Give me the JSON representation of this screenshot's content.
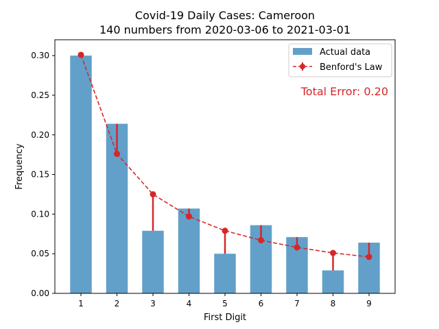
{
  "chart_data": {
    "type": "bar",
    "title": "Covid-19 Daily Cases: Cameroon",
    "subtitle": "140 numbers from 2020-03-06 to 2021-03-01",
    "xlabel": "First Digit",
    "ylabel": "Frequency",
    "categories": [
      "1",
      "2",
      "3",
      "4",
      "5",
      "6",
      "7",
      "8",
      "9"
    ],
    "ylim": [
      0,
      0.32
    ],
    "yticks": [
      "0.00",
      "0.05",
      "0.10",
      "0.15",
      "0.20",
      "0.25",
      "0.30"
    ],
    "series": [
      {
        "name": "Actual data",
        "type": "bar",
        "color": "#1f77b4",
        "values": [
          0.3,
          0.214,
          0.079,
          0.107,
          0.05,
          0.086,
          0.071,
          0.029,
          0.064
        ]
      },
      {
        "name": "Benford's Law",
        "type": "line",
        "color": "#d62728",
        "values": [
          0.301,
          0.176,
          0.125,
          0.097,
          0.079,
          0.067,
          0.058,
          0.051,
          0.046
        ]
      }
    ],
    "annotation": "Total Error: 0.20",
    "legend_position": "top-right",
    "grid": false
  }
}
